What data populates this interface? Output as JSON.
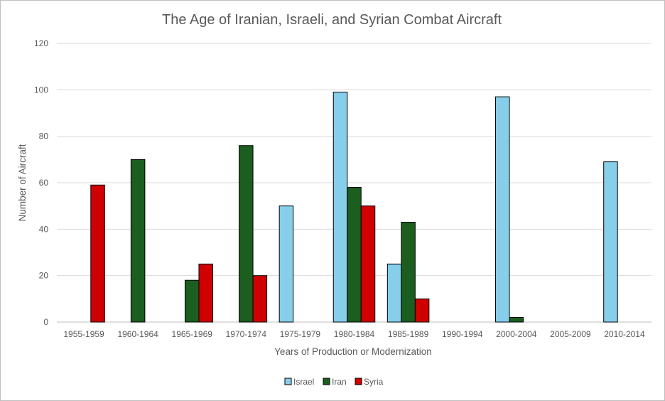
{
  "chart_data": {
    "type": "bar",
    "title": "The Age of Iranian, Israeli, and Syrian Combat Aircraft",
    "xlabel": "Years of Production or Modernization",
    "ylabel": "Number of Aircraft",
    "ylim": [
      0,
      120
    ],
    "yticks": [
      0,
      20,
      40,
      60,
      80,
      100,
      120
    ],
    "grid": true,
    "legend_position": "bottom",
    "categories": [
      "1955-1959",
      "1960-1964",
      "1965-1969",
      "1970-1974",
      "1975-1979",
      "1980-1984",
      "1985-1989",
      "1990-1994",
      "2000-2004",
      "2005-2009",
      "2010-2014"
    ],
    "series": [
      {
        "name": "Israel",
        "color": "#87ceeb",
        "values": [
          null,
          null,
          null,
          null,
          50,
          99,
          25,
          null,
          97,
          null,
          69
        ]
      },
      {
        "name": "Iran",
        "color": "#1b5e20",
        "values": [
          null,
          70,
          18,
          76,
          null,
          58,
          43,
          null,
          2,
          null,
          null
        ]
      },
      {
        "name": "Syria",
        "color": "#d00000",
        "values": [
          59,
          null,
          25,
          20,
          null,
          50,
          10,
          null,
          null,
          null,
          null
        ]
      }
    ]
  }
}
